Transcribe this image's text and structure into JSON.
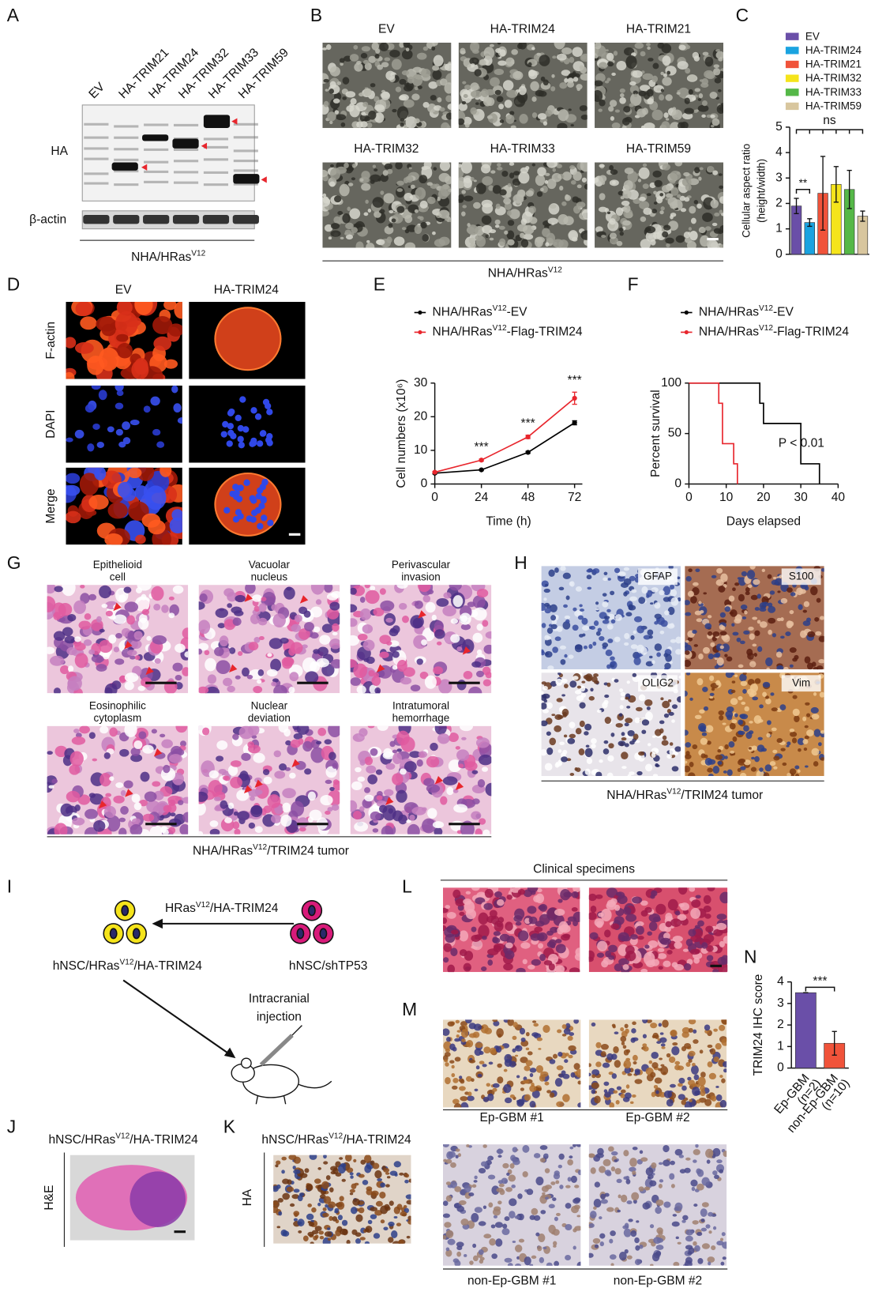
{
  "panel_labels": [
    "A",
    "B",
    "C",
    "D",
    "E",
    "F",
    "G",
    "H",
    "I",
    "J",
    "K",
    "L",
    "M",
    "N"
  ],
  "panel_a": {
    "lanes": [
      "EV",
      "HA-TRIM21",
      "HA-TRIM24",
      "HA-TRIM32",
      "HA-TRIM33",
      "HA-TRIM59"
    ],
    "rows": [
      "HA",
      "β-actin"
    ],
    "caption": "NHA/HRasV12"
  },
  "panel_b": {
    "images": [
      "EV",
      "HA-TRIM24",
      "HA-TRIM21",
      "HA-TRIM32",
      "HA-TRIM33",
      "HA-TRIM59"
    ],
    "caption": "NHA/HRasV12"
  },
  "panel_d": {
    "columns": [
      "EV",
      "HA-TRIM24"
    ],
    "rows": [
      "F-actin",
      "DAPI",
      "Merge"
    ]
  },
  "panel_g": {
    "images": [
      [
        "Epithelioid",
        "cell"
      ],
      [
        "Vacuolar",
        "nucleus"
      ],
      [
        "Perivascular",
        "invasion"
      ],
      [
        "Eosinophilic",
        "cytoplasm"
      ],
      [
        "Nuclear",
        "deviation"
      ],
      [
        "Intratumoral",
        "hemorrhage"
      ]
    ],
    "caption": "NHA/HRasV12/TRIM24 tumor"
  },
  "panel_h": {
    "stains": [
      "GFAP",
      "S100",
      "OLIG2",
      "Vim"
    ],
    "caption": "NHA/HRasV12/TRIM24 tumor"
  },
  "panel_i": {
    "arrow_label": "HRasV12/HA-TRIM24",
    "product": "hNSC/HRasV12/HA-TRIM24",
    "source": "hNSC/shTP53",
    "step": [
      "Intracranial",
      "injection"
    ]
  },
  "panel_j": {
    "title": "hNSC/HRasV12/HA-TRIM24",
    "row": "H&E"
  },
  "panel_k": {
    "title": "hNSC/HRasV12/HA-TRIM24",
    "row": "HA"
  },
  "panel_l": {
    "title": "Clinical specimens"
  },
  "panel_m": {
    "images": [
      "Ep-GBM #1",
      "Ep-GBM #2",
      "non-Ep-GBM #1",
      "non-Ep-GBM #2"
    ]
  },
  "chart_data": [
    {
      "type": "bar",
      "ylabel": [
        "Cellular aspect ratio",
        "(height/width)"
      ],
      "ylim": [
        0,
        5
      ],
      "yticks": [
        0,
        1,
        2,
        3,
        4,
        5
      ],
      "series": [
        {
          "name": "EV",
          "color": "#6a4fa8",
          "values": [
            1.9
          ],
          "errors": [
            0.3
          ]
        },
        {
          "name": "HA-TRIM24",
          "color": "#1aa3e0",
          "values": [
            1.25
          ],
          "errors": [
            0.15
          ]
        },
        {
          "name": "HA-TRIM21",
          "color": "#f0533a",
          "values": [
            2.4
          ],
          "errors": [
            1.45
          ]
        },
        {
          "name": "HA-TRIM32",
          "color": "#f5e41b",
          "values": [
            2.75
          ],
          "errors": [
            0.7
          ]
        },
        {
          "name": "HA-TRIM33",
          "color": "#55b848",
          "values": [
            2.55
          ],
          "errors": [
            0.75
          ]
        },
        {
          "name": "HA-TRIM59",
          "color": "#d8c69e",
          "values": [
            1.5
          ],
          "errors": [
            0.2
          ]
        }
      ],
      "annotations": [
        "**",
        "ns"
      ]
    },
    {
      "type": "line",
      "xlabel": "Time (h)",
      "ylabel": "Cell numbers (x10⁶)",
      "x": [
        0,
        24,
        48,
        72
      ],
      "xlim": [
        0,
        76
      ],
      "xticks": [
        0,
        24,
        48,
        72
      ],
      "ylim": [
        0,
        30
      ],
      "yticks": [
        0,
        10,
        20,
        30
      ],
      "series": [
        {
          "name": "NHA/HRasV12-EV",
          "color": "#000000",
          "values": [
            3.2,
            4.2,
            9.4,
            18.2
          ],
          "errors": [
            0.2,
            0.2,
            0.3,
            0.6
          ]
        },
        {
          "name": "NHA/HRasV12-Flag-TRIM24",
          "color": "#e8262d",
          "values": [
            3.5,
            7.1,
            14,
            25.5
          ],
          "errors": [
            0.2,
            0.3,
            0.5,
            1.8
          ]
        }
      ],
      "annotations": [
        "***",
        "***",
        "***"
      ]
    },
    {
      "type": "step",
      "xlabel": "Days elapsed",
      "ylabel": "Percent survival",
      "xlim": [
        0,
        40
      ],
      "xticks": [
        0,
        10,
        20,
        30,
        40
      ],
      "ylim": [
        0,
        100
      ],
      "yticks": [
        0,
        50,
        100
      ],
      "series": [
        {
          "name": "NHA/HRasV12-EV",
          "color": "#000000",
          "x": [
            0,
            19,
            20,
            30,
            35
          ],
          "values": [
            100,
            80,
            60,
            20,
            0
          ]
        },
        {
          "name": "NHA/HRasV12-Flag-TRIM24",
          "color": "#e8262d",
          "x": [
            0,
            8,
            9,
            12,
            13
          ],
          "values": [
            100,
            80,
            40,
            20,
            0
          ]
        }
      ],
      "annotation": "P < 0.01"
    },
    {
      "type": "bar",
      "ylabel": "TRIM24 IHC score",
      "categories": [
        "Ep-GBM",
        "non-Ep-GBM"
      ],
      "category_notes": [
        "(n=2)",
        "(n=10)"
      ],
      "values": [
        3.5,
        1.15
      ],
      "errors": [
        0,
        0.55
      ],
      "colors": [
        "#6a4fa8",
        "#f0533a"
      ],
      "ylim": [
        0,
        4
      ],
      "yticks": [
        0,
        1,
        2,
        3,
        4
      ],
      "annotations": [
        "***"
      ]
    }
  ]
}
